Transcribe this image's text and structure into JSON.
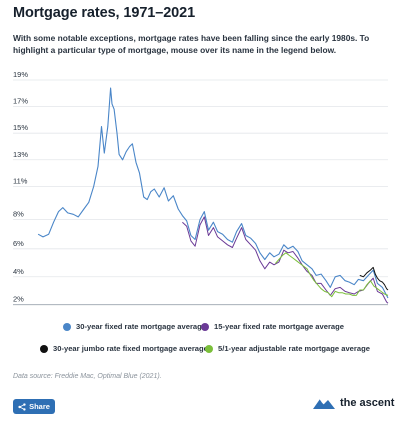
{
  "header": {
    "title": "Mortgage rates, 1971–2021",
    "subtitle": "With some notable exceptions, mortgage rates have been falling since the early 1980s. To highlight a particular type of mortgage, mouse over its name in the legend below."
  },
  "chart_data": {
    "type": "line",
    "x_unit": "year",
    "xlim": [
      1971,
      2021
    ],
    "ylim": [
      2,
      19
    ],
    "y_ticks": [
      "19%",
      "17%",
      "15%",
      "13%",
      "11%",
      "8%",
      "6%",
      "4%",
      "2%"
    ],
    "y_tick_values": [
      19,
      17,
      15,
      13,
      11,
      8.5,
      6.3,
      4.2,
      2.1
    ],
    "grid": true,
    "legend_position": "bottom",
    "series": [
      {
        "name": "30-year fixed rate mortgage average",
        "color": "#4a86c8",
        "x": [
          1971.3,
          1972,
          1972.8,
          1973.5,
          1974.2,
          1974.8,
          1975.5,
          1976.3,
          1977,
          1977.8,
          1978.5,
          1979.2,
          1979.8,
          1980.3,
          1980.7,
          1981.2,
          1981.6,
          1981.8,
          1982.1,
          1982.5,
          1982.8,
          1983.3,
          1983.8,
          1984.3,
          1984.7,
          1985.2,
          1985.7,
          1986.3,
          1986.8,
          1987.3,
          1987.8,
          1988.5,
          1989.2,
          1989.8,
          1990.5,
          1991.2,
          1991.8,
          1992.4,
          1993,
          1993.6,
          1994.3,
          1994.9,
          1995.5,
          1996.2,
          1996.8,
          1997.5,
          1998.2,
          1998.9,
          1999.5,
          2000.2,
          2000.8,
          2001.5,
          2002.2,
          2002.8,
          2003.5,
          2004.2,
          2004.8,
          2005.5,
          2006.2,
          2006.8,
          2007.5,
          2008.2,
          2008.8,
          2009.5,
          2010.2,
          2010.8,
          2011.5,
          2012.2,
          2012.8,
          2013.5,
          2014.2,
          2014.9,
          2015.5,
          2016.2,
          2016.8,
          2017.5,
          2018.2,
          2018.9,
          2019.5,
          2020.2,
          2020.8,
          2021
        ],
        "values": [
          7.4,
          7.2,
          7.4,
          8.3,
          9.1,
          9.4,
          9.0,
          8.9,
          8.7,
          9.3,
          9.8,
          11.0,
          12.5,
          15.5,
          13.5,
          15.5,
          18.4,
          17.2,
          16.8,
          15.0,
          13.4,
          13.0,
          13.6,
          14.0,
          14.2,
          12.8,
          12.0,
          10.2,
          10.0,
          10.6,
          10.8,
          10.2,
          10.9,
          9.9,
          10.3,
          9.3,
          8.8,
          8.4,
          7.3,
          7.0,
          8.5,
          9.1,
          7.7,
          8.3,
          7.6,
          7.4,
          7.0,
          6.8,
          7.6,
          8.2,
          7.3,
          7.1,
          6.7,
          6.0,
          5.5,
          6.0,
          5.7,
          5.9,
          6.6,
          6.3,
          6.5,
          6.1,
          5.4,
          5.1,
          4.8,
          4.3,
          4.4,
          3.9,
          3.4,
          4.2,
          4.3,
          3.9,
          3.8,
          3.6,
          4.0,
          3.9,
          4.3,
          4.7,
          3.7,
          3.4,
          2.8,
          2.6
        ]
      },
      {
        "name": "15-year fixed rate mortgage average",
        "color": "#6a3a96",
        "x": [
          1991.8,
          1992.4,
          1993,
          1993.6,
          1994.3,
          1994.9,
          1995.5,
          1996.2,
          1996.8,
          1997.5,
          1998.2,
          1998.9,
          1999.5,
          2000.2,
          2000.8,
          2001.5,
          2002.2,
          2002.8,
          2003.5,
          2004.2,
          2004.8,
          2005.5,
          2006.2,
          2006.8,
          2007.5,
          2008.2,
          2008.8,
          2009.5,
          2010.2,
          2010.8,
          2011.5,
          2012.2,
          2012.8,
          2013.5,
          2014.2,
          2014.9,
          2015.5,
          2016.2,
          2016.8,
          2017.5,
          2018.2,
          2018.9,
          2019.5,
          2020.2,
          2020.8,
          2021
        ],
        "values": [
          8.3,
          8.0,
          6.9,
          6.5,
          8.1,
          8.7,
          7.3,
          7.9,
          7.2,
          6.9,
          6.6,
          6.4,
          7.1,
          7.9,
          7.0,
          6.6,
          6.2,
          5.4,
          4.8,
          5.3,
          5.1,
          5.3,
          6.2,
          6.0,
          6.1,
          5.6,
          5.1,
          4.6,
          4.3,
          3.7,
          3.7,
          3.2,
          2.8,
          3.3,
          3.4,
          3.1,
          3.0,
          2.9,
          3.1,
          3.2,
          3.7,
          4.1,
          3.1,
          2.9,
          2.3,
          2.2
        ]
      },
      {
        "name": "30-year jumbo rate fixed mortgage average",
        "color": "#111111",
        "x": [
          2017,
          2017.5,
          2018,
          2018.5,
          2018.9,
          2019.2,
          2019.5,
          2019.8,
          2020.2,
          2020.5,
          2020.8,
          2021
        ],
        "values": [
          4.3,
          4.2,
          4.5,
          4.7,
          4.9,
          4.4,
          4.1,
          3.9,
          3.8,
          3.6,
          3.3,
          3.2
        ]
      },
      {
        "name": "5/1-year adjustable rate mortgage average",
        "color": "#7bbf3a",
        "x": [
          2005,
          2005.5,
          2006,
          2006.5,
          2007,
          2007.5,
          2008,
          2008.5,
          2009,
          2009.5,
          2010,
          2010.5,
          2011,
          2011.5,
          2012,
          2012.5,
          2013,
          2013.5,
          2014,
          2014.5,
          2015,
          2015.5,
          2016,
          2016.5,
          2017,
          2017.5,
          2018,
          2018.5,
          2019,
          2019.5,
          2020,
          2020.5,
          2021
        ],
        "values": [
          5.2,
          5.5,
          5.8,
          6.0,
          5.8,
          5.6,
          5.4,
          5.2,
          5.0,
          4.8,
          4.3,
          3.9,
          3.6,
          3.3,
          3.1,
          3.0,
          2.7,
          3.1,
          3.0,
          3.0,
          2.9,
          2.9,
          2.8,
          2.8,
          3.2,
          3.2,
          3.6,
          3.9,
          3.5,
          3.3,
          3.1,
          2.9,
          2.8
        ]
      }
    ]
  },
  "legend": [
    {
      "label": "30-year fixed rate mortgage average",
      "color": "#4a86c8"
    },
    {
      "label": "15-year fixed rate mortgage average",
      "color": "#6a3a96"
    },
    {
      "label": "30-year jumbo rate fixed mortgage average",
      "color": "#111111"
    },
    {
      "label": "5/1-year adjustable rate mortgage average",
      "color": "#7bbf3a"
    }
  ],
  "source": "Data source: Freddie Mac, Optimal Blue (2021).",
  "share_label": "Share",
  "brand": {
    "name": "the ascent",
    "color": "#2e6fb4"
  }
}
